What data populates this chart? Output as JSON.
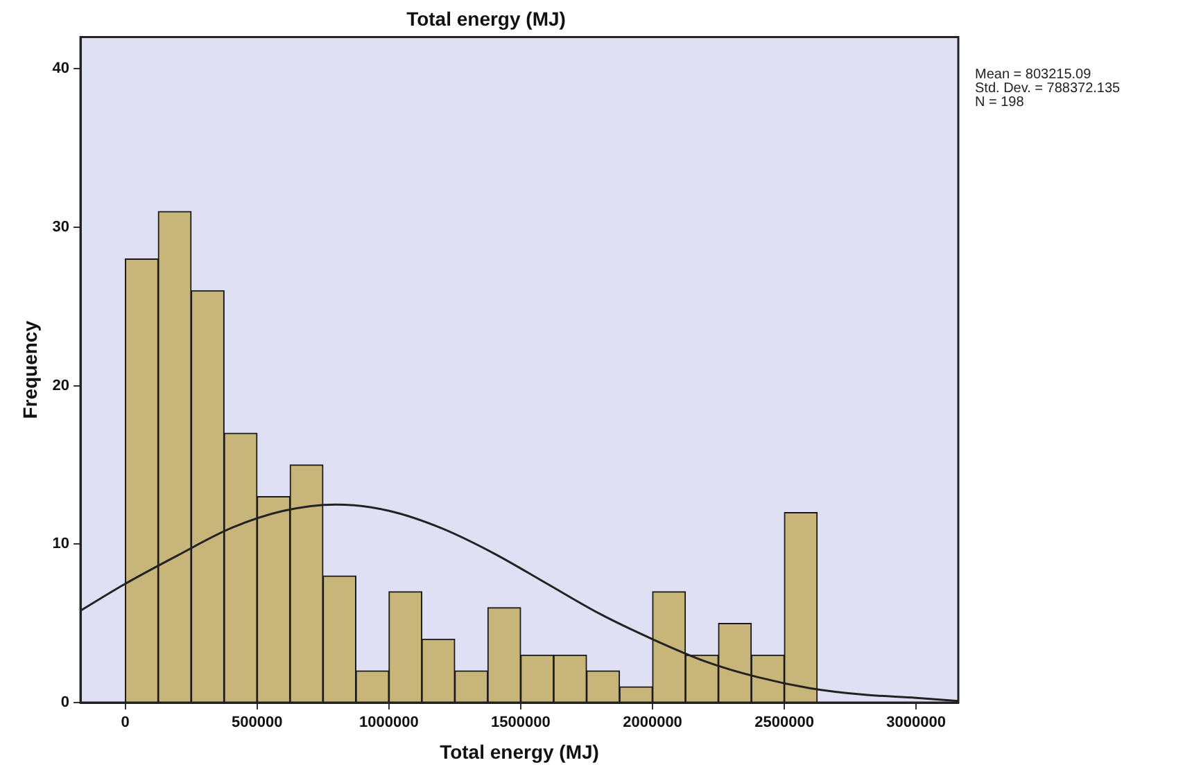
{
  "chart_data": {
    "type": "histogram",
    "title": "Total energy (MJ)",
    "xlabel": "Total energy (MJ)",
    "ylabel": "Frequency",
    "bins": [
      0,
      125000,
      250000,
      375000,
      500000,
      625000,
      750000,
      875000,
      1000000,
      1125000,
      1250000,
      1375000,
      1500000,
      1625000,
      1750000,
      1875000,
      2000000,
      2125000,
      2250000,
      2375000,
      2500000,
      2625000
    ],
    "values": [
      28,
      31,
      26,
      17,
      13,
      15,
      8,
      2,
      7,
      4,
      2,
      6,
      3,
      3,
      2,
      1,
      7,
      3,
      5,
      3,
      12
    ],
    "color": "#c8b57a",
    "series": [
      {
        "type": "line",
        "color": "#222222",
        "x": [
          -170000,
          0,
          200000,
          400000,
          600000,
          800000,
          1000000,
          1200000,
          1400000,
          1600000,
          1800000,
          2000000,
          2200000,
          2400000,
          2600000,
          2800000,
          3000000,
          3160000
        ],
        "values": [
          5.8,
          7.5,
          9.3,
          11.0,
          12.1,
          12.5,
          12.1,
          11.0,
          9.4,
          7.5,
          5.6,
          4.0,
          2.6,
          1.6,
          0.9,
          0.5,
          0.3,
          0.1
        ]
      }
    ],
    "xlim": [
      -170000,
      3160000
    ],
    "xticks": [
      0,
      500000,
      1000000,
      1500000,
      2000000,
      2500000,
      3000000
    ],
    "ylim": [
      0,
      42
    ],
    "yticks": [
      0,
      10,
      20,
      30,
      40
    ],
    "grid": false,
    "legend": false,
    "marker": "none",
    "line_style": "solid",
    "annotations": [
      "Mean = 803215.09",
      "Std. Dev. = 788372.135",
      "N = 198"
    ]
  }
}
